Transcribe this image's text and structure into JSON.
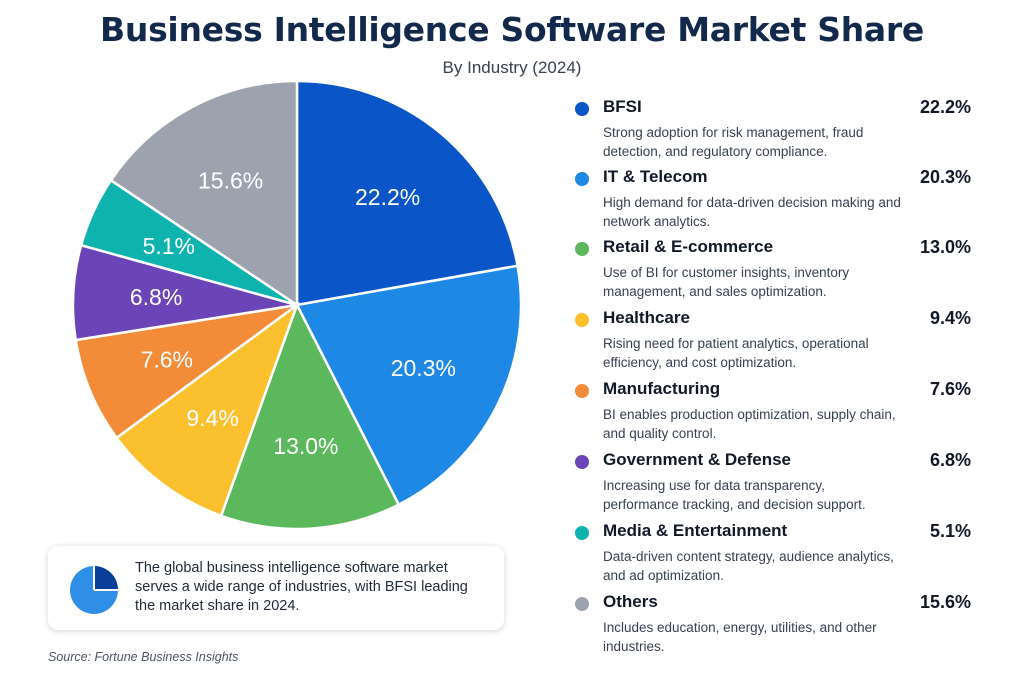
{
  "chart_data": {
    "type": "pie",
    "title": "Business Intelligence Software Market Share",
    "subtitle": "By Industry (2024)",
    "slices": [
      {
        "name": "BFSI",
        "value": 22.2,
        "label": "22.2%",
        "color": "#0a56c9",
        "description": "Strong adoption for risk management, fraud detection, and regulatory compliance."
      },
      {
        "name": "IT & Telecom",
        "value": 20.3,
        "label": "20.3%",
        "color": "#1e88e5",
        "description": "High demand for data-driven decision making and network analytics."
      },
      {
        "name": "Retail & E-commerce",
        "value": 13.0,
        "label": "13.0%",
        "color": "#5cb85c",
        "description": "Use of BI for customer insights, inventory management, and sales optimization."
      },
      {
        "name": "Healthcare",
        "value": 9.4,
        "label": "9.4%",
        "color": "#fbc02d",
        "description": "Rising need for patient analytics, operational efficiency, and cost optimization."
      },
      {
        "name": "Manufacturing",
        "value": 7.6,
        "label": "7.6%",
        "color": "#f28c38",
        "description": "BI enables production optimization, supply chain, and quality control."
      },
      {
        "name": "Government & Defense",
        "value": 6.8,
        "label": "6.8%",
        "color": "#6b45b8",
        "description": "Increasing use for data transparency, performance tracking, and decision support."
      },
      {
        "name": "Media & Entertainment",
        "value": 5.1,
        "label": "5.1%",
        "color": "#0fb3ad",
        "description": "Data-driven content strategy, audience analytics, and ad optimization."
      },
      {
        "name": "Others",
        "value": 15.6,
        "label": "15.6%",
        "color": "#9ca3af",
        "description": "Includes education, energy, utilities, and other industries."
      }
    ],
    "legend_placement": "right"
  },
  "note": {
    "text": "The global business intelligence software market serves a wide range of industries, with BFSI leading the market share in 2024.",
    "icon": "pie-chart-icon"
  },
  "source": "Source: Fortune Business Insights"
}
